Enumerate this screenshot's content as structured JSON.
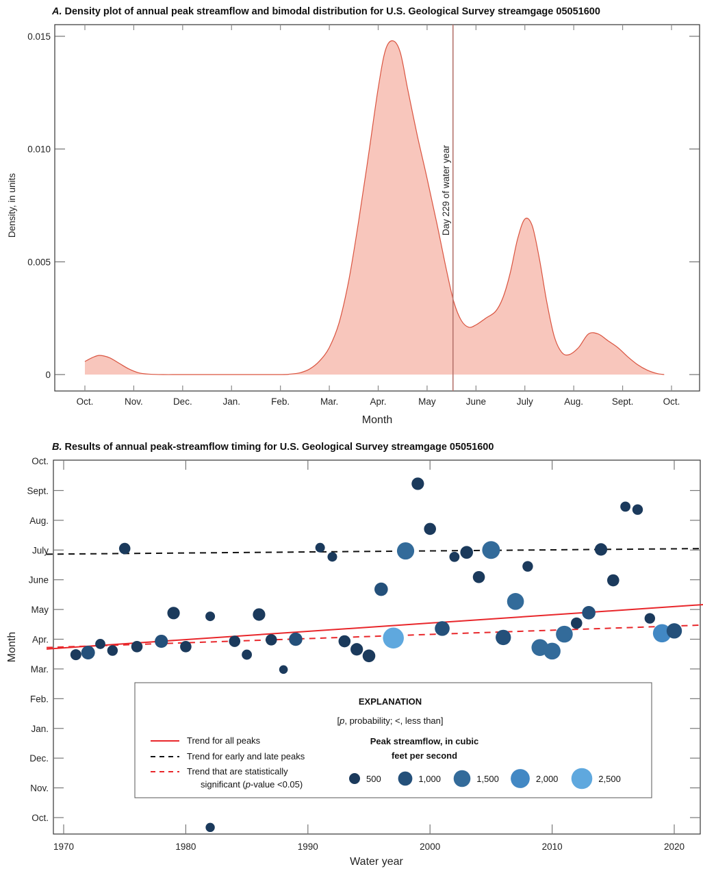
{
  "chart_data": [
    {
      "type": "area",
      "panel_label": "A.",
      "title": "Density plot of annual peak streamflow and bimodal distribution for U.S. Geological Survey streamgage 05051600",
      "xlabel": "Month",
      "ylabel": "Density, in units",
      "x_tick_labels": [
        "Oct.",
        "Nov.",
        "Dec.",
        "Jan.",
        "Feb.",
        "Mar.",
        "Apr.",
        "May",
        "June",
        "July",
        "Aug.",
        "Sept.",
        "Oct."
      ],
      "y_tick_labels": [
        "0",
        "0.005",
        "0.010",
        "0.015"
      ],
      "y_ticks": [
        0,
        0.005,
        0.01,
        0.015
      ],
      "xlim_months": [
        0,
        12
      ],
      "ylim": [
        -0.0008,
        0.0155
      ],
      "x_months": [
        0,
        0.15,
        0.3,
        0.5,
        0.7,
        0.9,
        1.1,
        1.3,
        1.6,
        2,
        3,
        4,
        4.2,
        4.4,
        4.6,
        4.8,
        5.0,
        5.2,
        5.4,
        5.6,
        5.8,
        6.0,
        6.15,
        6.3,
        6.45,
        6.6,
        6.8,
        7.0,
        7.2,
        7.4,
        7.55,
        7.7,
        7.85,
        8.0,
        8.2,
        8.4,
        8.55,
        8.7,
        8.85,
        9.0,
        9.15,
        9.3,
        9.45,
        9.6,
        9.75,
        9.9,
        10.1,
        10.3,
        10.5,
        10.7,
        10.9,
        11.1,
        11.3,
        11.5,
        11.7,
        11.85
      ],
      "density": [
        0.00058,
        0.00075,
        0.00085,
        0.00075,
        0.0005,
        0.00025,
        8e-05,
        2e-05,
        0.0,
        0.0,
        0.0,
        0.0,
        2e-05,
        8e-05,
        0.00025,
        0.0006,
        0.0012,
        0.0023,
        0.0042,
        0.0068,
        0.0097,
        0.0127,
        0.0144,
        0.0148,
        0.0143,
        0.0127,
        0.0106,
        0.0087,
        0.0067,
        0.0046,
        0.0032,
        0.0024,
        0.0021,
        0.0022,
        0.0025,
        0.0028,
        0.0034,
        0.0045,
        0.006,
        0.0069,
        0.0066,
        0.0051,
        0.0032,
        0.0017,
        0.001,
        0.00088,
        0.0012,
        0.0018,
        0.0018,
        0.0015,
        0.0012,
        0.0008,
        0.00045,
        0.0002,
        5e-05,
        0.0
      ],
      "reference_line": {
        "x_month": 7.53,
        "label": "Day 229 of water year"
      },
      "colors": {
        "fill": "#f8c6bc",
        "line": "#d9533f",
        "ref_line": "#b5746c"
      }
    },
    {
      "type": "scatter",
      "panel_label": "B.",
      "title": "Results of annual peak-streamflow timing for U.S. Geological Survey streamgage 05051600",
      "xlabel": "Water year",
      "ylabel": "Month",
      "x_tick_labels": [
        "1970",
        "1980",
        "1990",
        "2000",
        "2010",
        "2020"
      ],
      "x_ticks": [
        1970,
        1980,
        1990,
        2000,
        2010,
        2020
      ],
      "xlim": [
        1968.6,
        2022.6
      ],
      "y_tick_labels": [
        "Oct.",
        "Nov.",
        "Dec.",
        "Jan.",
        "Feb.",
        "Mar.",
        "Apr.",
        "May",
        "June",
        "July",
        "Aug.",
        "Sept.",
        "Oct."
      ],
      "ylim_months": [
        -0.6,
        12.1
      ],
      "points": [
        {
          "year": 1971,
          "month": 5.48,
          "flow": 500
        },
        {
          "year": 1972,
          "month": 5.55,
          "flow": 900
        },
        {
          "year": 1973,
          "month": 5.84,
          "flow": 400
        },
        {
          "year": 1974,
          "month": 5.62,
          "flow": 450
        },
        {
          "year": 1975,
          "month": 9.05,
          "flow": 550
        },
        {
          "year": 1976,
          "month": 5.75,
          "flow": 550
        },
        {
          "year": 1978,
          "month": 5.93,
          "flow": 800
        },
        {
          "year": 1979,
          "month": 6.88,
          "flow": 700
        },
        {
          "year": 1980,
          "month": 5.75,
          "flow": 550
        },
        {
          "year": 1982,
          "month": 6.77,
          "flow": 350
        },
        {
          "year": 1982,
          "month": -0.33,
          "flow": 300
        },
        {
          "year": 1984,
          "month": 5.93,
          "flow": 550
        },
        {
          "year": 1985,
          "month": 5.48,
          "flow": 400
        },
        {
          "year": 1986,
          "month": 6.83,
          "flow": 700
        },
        {
          "year": 1987,
          "month": 5.98,
          "flow": 550
        },
        {
          "year": 1988,
          "month": 4.98,
          "flow": 250
        },
        {
          "year": 1989,
          "month": 6.0,
          "flow": 850
        },
        {
          "year": 1991,
          "month": 9.08,
          "flow": 350
        },
        {
          "year": 1992,
          "month": 8.77,
          "flow": 350
        },
        {
          "year": 1993,
          "month": 5.93,
          "flow": 650
        },
        {
          "year": 1994,
          "month": 5.66,
          "flow": 700
        },
        {
          "year": 1995,
          "month": 5.44,
          "flow": 750
        },
        {
          "year": 1996,
          "month": 7.68,
          "flow": 850
        },
        {
          "year": 1997,
          "month": 6.04,
          "flow": 2500
        },
        {
          "year": 1998,
          "month": 8.97,
          "flow": 1600
        },
        {
          "year": 1999,
          "month": 11.23,
          "flow": 700
        },
        {
          "year": 2000,
          "month": 9.71,
          "flow": 650
        },
        {
          "year": 2001,
          "month": 6.36,
          "flow": 1100
        },
        {
          "year": 2002,
          "month": 8.77,
          "flow": 400
        },
        {
          "year": 2003,
          "month": 8.92,
          "flow": 750
        },
        {
          "year": 2004,
          "month": 8.09,
          "flow": 650
        },
        {
          "year": 2005,
          "month": 9.0,
          "flow": 1700
        },
        {
          "year": 2006,
          "month": 6.06,
          "flow": 1200
        },
        {
          "year": 2007,
          "month": 7.27,
          "flow": 1500
        },
        {
          "year": 2008,
          "month": 8.45,
          "flow": 450
        },
        {
          "year": 2009,
          "month": 5.72,
          "flow": 1500
        },
        {
          "year": 2010,
          "month": 5.6,
          "flow": 1500
        },
        {
          "year": 2011,
          "month": 6.17,
          "flow": 1500
        },
        {
          "year": 2012,
          "month": 6.54,
          "flow": 550
        },
        {
          "year": 2013,
          "month": 6.89,
          "flow": 850
        },
        {
          "year": 2014,
          "month": 9.02,
          "flow": 700
        },
        {
          "year": 2015,
          "month": 7.98,
          "flow": 650
        },
        {
          "year": 2016,
          "month": 10.46,
          "flow": 400
        },
        {
          "year": 2017,
          "month": 10.36,
          "flow": 450
        },
        {
          "year": 2018,
          "month": 6.7,
          "flow": 450
        },
        {
          "year": 2019,
          "month": 6.2,
          "flow": 1800
        },
        {
          "year": 2020,
          "month": 6.28,
          "flow": 1200
        }
      ],
      "trends": [
        {
          "name": "Trend for all peaks",
          "style": "solid",
          "color": "#e8262a",
          "start": {
            "year": 1968.6,
            "month": 5.67
          },
          "end": {
            "year": 2022.6,
            "month": 7.17
          }
        },
        {
          "name": "Trend for early and late peaks",
          "style": "dashed",
          "color": "#111111",
          "start": {
            "year": 1968.6,
            "month": 8.86
          },
          "end": {
            "year": 2022.6,
            "month": 9.05
          }
        },
        {
          "name": "Trend that are statistically significant (p-value <0.05)",
          "style": "dashed",
          "color": "#e8262a",
          "start": {
            "year": 1968.6,
            "month": 5.72
          },
          "end": {
            "year": 2022.6,
            "month": 6.48
          }
        }
      ],
      "legend": {
        "title": "EXPLANATION",
        "note_p": "p",
        "note_rest": ", probability; <, less than]",
        "note_open": "[",
        "lines": [
          {
            "label": "Trend for all peaks"
          },
          {
            "label": "Trend for early and late peaks"
          },
          {
            "label_line1": "Trend that are statistically",
            "label_line2_pre": "significant (",
            "label_line2_p": "p",
            "label_line2_post": "-value <0.05)"
          }
        ],
        "size_title_line1": "Peak streamflow, in cubic",
        "size_title_line2": "feet per second",
        "sizes": [
          {
            "label": "500",
            "flow": 500,
            "color": "#1b3a5c"
          },
          {
            "label": "1,000",
            "flow": 1000,
            "color": "#24507a"
          },
          {
            "label": "1,500",
            "flow": 1500,
            "color": "#336b9a"
          },
          {
            "label": "2,000",
            "flow": 2000,
            "color": "#4288c4"
          },
          {
            "label": "2,500",
            "flow": 2500,
            "color": "#5fa8de"
          }
        ]
      }
    }
  ]
}
